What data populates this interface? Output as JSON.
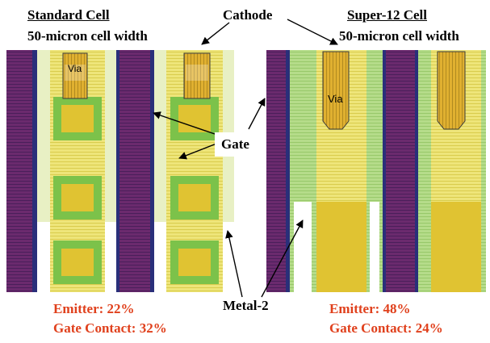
{
  "left_cell": {
    "title": "Standard Cell",
    "subtitle": "50-micron cell width",
    "via_label": "Via",
    "emitter": "Emitter: 22%",
    "gate_contact": "Gate Contact: 32%"
  },
  "right_cell": {
    "title": "Super-12 Cell",
    "subtitle": "50-micron cell width",
    "via_label": "Via",
    "emitter": "Emitter: 48%",
    "gate_contact": "Gate Contact: 24%"
  },
  "callouts": {
    "cathode": "Cathode",
    "gate": "Gate",
    "metal2": "Metal-2"
  },
  "colors": {
    "purple": "#6b2a6e",
    "purple_dark": "#4a1f5a",
    "navy": "#2a2f7a",
    "yellow": "#e0c332",
    "yellow_light": "#eee57a",
    "green": "#7cc24a",
    "green_light": "#b5dc8a",
    "pale": "#e8f0c4",
    "emphasis_red": "#e0401c"
  }
}
